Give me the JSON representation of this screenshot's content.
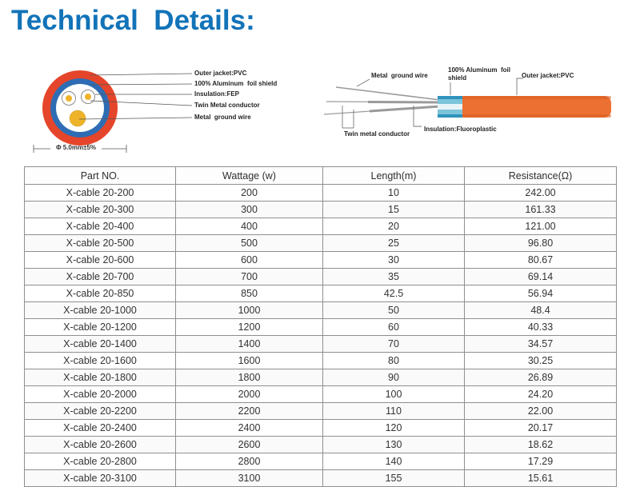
{
  "page": {
    "title": "Technical  Details:",
    "title_color": "#1273b8"
  },
  "cross_section_diagram": {
    "labels": [
      "Outer jacket:PVC",
      "100% Aluminum  foil shield",
      "Insulation:FEP",
      "Twin Metal conductor",
      "Metal  ground wire"
    ],
    "dimension": "Φ 5.0mm±5%",
    "colors": {
      "jacket": "#e5452a",
      "shield": "#2e6db4",
      "insulation": "#ffffff",
      "conductor": "#efb32a",
      "line": "#8a8a8a"
    }
  },
  "side_view_diagram": {
    "labels": {
      "ground_wire": "Metal  ground wire",
      "shield_line1": "100% Aluminum  foil",
      "shield_line2": "shield",
      "jacket": "Outer jacket:PVC",
      "conductor": "Twin metal conductor",
      "insulation": "Insulation:Fluoroplastic"
    },
    "colors": {
      "jacket": "#ec7031",
      "jacket_dark": "#d95c20",
      "shield": "#2e93bc",
      "shield_mid": "#7cc4da",
      "shield_light": "#e8f3f7",
      "wire": "#9a9a9a",
      "line": "#8a8a8a"
    }
  },
  "table": {
    "headers": [
      "Part NO.",
      "Wattage (w)",
      "Length(m)",
      "Resistance(Ω)"
    ],
    "rows": [
      [
        "X-cable 20-200",
        "200",
        "10",
        "242.00"
      ],
      [
        "X-cable 20-300",
        "300",
        "15",
        "161.33"
      ],
      [
        "X-cable 20-400",
        "400",
        "20",
        "121.00"
      ],
      [
        "X-cable 20-500",
        "500",
        "25",
        "96.80"
      ],
      [
        "X-cable 20-600",
        "600",
        "30",
        "80.67"
      ],
      [
        "X-cable 20-700",
        "700",
        "35",
        "69.14"
      ],
      [
        "X-cable 20-850",
        "850",
        "42.5",
        "56.94"
      ],
      [
        "X-cable 20-1000",
        "1000",
        "50",
        "48.4"
      ],
      [
        "X-cable 20-1200",
        "1200",
        "60",
        "40.33"
      ],
      [
        "X-cable 20-1400",
        "1400",
        "70",
        "34.57"
      ],
      [
        "X-cable 20-1600",
        "1600",
        "80",
        "30.25"
      ],
      [
        "X-cable 20-1800",
        "1800",
        "90",
        "26.89"
      ],
      [
        "X-cable 20-2000",
        "2000",
        "100",
        "24.20"
      ],
      [
        "X-cable 20-2200",
        "2200",
        "110",
        "22.00"
      ],
      [
        "X-cable 20-2400",
        "2400",
        "120",
        "20.17"
      ],
      [
        "X-cable 20-2600",
        "2600",
        "130",
        "18.62"
      ],
      [
        "X-cable 20-2800",
        "2800",
        "140",
        "17.29"
      ],
      [
        "X-cable 20-3100",
        "3100",
        "155",
        "15.61"
      ]
    ]
  }
}
